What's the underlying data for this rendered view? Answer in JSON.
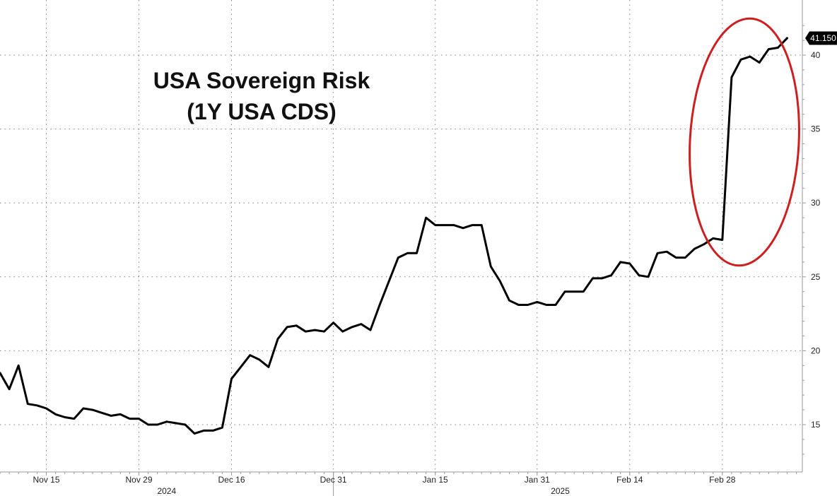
{
  "chart_data": {
    "type": "line",
    "title": "USA Sovereign Risk",
    "subtitle": "(1Y USA CDS)",
    "xlabel": "",
    "ylabel": "",
    "ylim": [
      12,
      42.5
    ],
    "y_ticks": [
      15,
      20,
      25,
      30,
      35,
      40
    ],
    "y_axis_side": "right",
    "grid": true,
    "x_ticks": [
      {
        "label": "Nov 15",
        "index": 5
      },
      {
        "label": "Nov 29",
        "index": 15
      },
      {
        "label": "Dec 16",
        "index": 25
      },
      {
        "label": "Dec 31",
        "index": 36
      },
      {
        "label": "Jan 15",
        "index": 47
      },
      {
        "label": "Jan 31",
        "index": 58
      },
      {
        "label": "Feb 14",
        "index": 68
      },
      {
        "label": "Feb 28",
        "index": 78
      }
    ],
    "year_labels": [
      {
        "label": "2024",
        "index": 18
      },
      {
        "label": "2025",
        "index": 60.5
      }
    ],
    "year_divider_index": 36,
    "last_value_label": "41.150",
    "highlight": "red ellipse around final surge",
    "colors": {
      "line": "#000000",
      "highlight": "#cc1f1f",
      "last_tag": "#000000"
    },
    "series": [
      {
        "values": [
          18.5,
          17.4,
          19.0,
          16.4,
          16.3,
          16.1,
          15.7,
          15.5,
          15.4,
          16.1,
          16.0,
          15.8,
          15.6,
          15.7,
          15.4,
          15.4,
          15.0,
          15.0,
          15.2,
          15.1,
          15.0,
          14.4,
          14.6,
          14.6,
          14.8,
          18.1,
          18.9,
          19.7,
          19.4,
          18.9,
          20.8,
          21.6,
          21.7,
          21.3,
          21.4,
          21.3,
          21.9,
          21.3,
          21.6,
          21.8,
          21.4,
          23.1,
          24.7,
          26.3,
          26.6,
          26.6,
          29.0,
          28.5,
          28.5,
          28.5,
          28.3,
          28.5,
          28.5,
          25.7,
          24.7,
          23.4,
          23.1,
          23.1,
          23.3,
          23.1,
          23.1,
          24.0,
          24.0,
          24.0,
          24.9,
          24.9,
          25.1,
          26.0,
          25.9,
          25.1,
          25.0,
          26.6,
          26.7,
          26.3,
          26.3,
          26.9,
          27.2,
          27.6,
          27.5,
          38.5,
          39.7,
          39.9,
          39.5,
          40.4,
          40.5,
          41.15
        ]
      }
    ]
  }
}
